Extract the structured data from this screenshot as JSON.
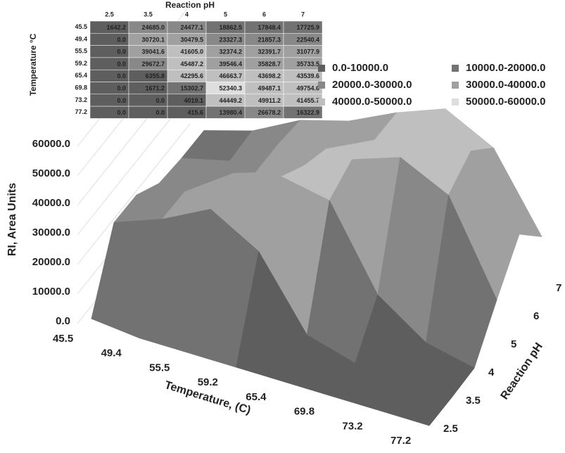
{
  "chart_data": {
    "type": "surface",
    "table_title": "Reaction pH",
    "table_row_title": "Temperature °C",
    "x_label": "Temperature, (C)",
    "y_label": "Reaction pH",
    "z_label": "RI, Area Units",
    "temperatures": [
      "45.5",
      "49.4",
      "55.5",
      "59.2",
      "65.4",
      "69.8",
      "73.2",
      "77.2"
    ],
    "ph": [
      "2.5",
      "3.5",
      "4",
      "5",
      "6",
      "7"
    ],
    "values": [
      [
        1642.2,
        24685.0,
        24477.1,
        18862.5,
        17848.4,
        17725.9
      ],
      [
        0.0,
        30720.1,
        30479.5,
        23327.3,
        21857.3,
        22540.4
      ],
      [
        0.0,
        39041.6,
        41605.0,
        32374.2,
        32391.7,
        31077.9
      ],
      [
        0.0,
        29672.7,
        45487.2,
        39546.4,
        35828.7,
        35733.5
      ],
      [
        0.0,
        6355.8,
        42295.6,
        46663.7,
        43698.2,
        43539.6
      ],
      [
        0.0,
        1671.2,
        15302.7,
        52340.3,
        49487.1,
        49754.6
      ],
      [
        0.0,
        0.0,
        4019.1,
        44449.2,
        49911.2,
        41455.7
      ],
      [
        0.0,
        0.0,
        415.6,
        13980.4,
        26678.2,
        16322.9
      ]
    ],
    "value_labels": [
      [
        "1642.2",
        "24685.0",
        "24477.1",
        "18862.5",
        "17848.4",
        "17725.9"
      ],
      [
        "0.0",
        "30720.1",
        "30479.5",
        "23327.3",
        "21857.3",
        "22540.4"
      ],
      [
        "0.0",
        "39041.6",
        "41605.0",
        "32374.2",
        "32391.7",
        "31077.9"
      ],
      [
        "0.0",
        "29672.7",
        "45487.2",
        "39546.4",
        "35828.7",
        "35733.5"
      ],
      [
        "0.0",
        "6355.8",
        "42295.6",
        "46663.7",
        "43698.2",
        "43539.6"
      ],
      [
        "0.0",
        "1671.2",
        "15302.7",
        "52340.3",
        "49487.1",
        "49754.6"
      ],
      [
        "0.0",
        "0.0",
        "4019.1",
        "44449.2",
        "49911.2",
        "41455.7"
      ],
      [
        "0.0",
        "0.0",
        "415.6",
        "13980.4",
        "26678.2",
        "16322.9"
      ]
    ],
    "zlim": [
      0,
      60000
    ],
    "zticks": [
      {
        "value": 0,
        "label": "0.0"
      },
      {
        "value": 10000,
        "label": "10000.0"
      },
      {
        "value": 20000,
        "label": "20000.0"
      },
      {
        "value": 30000,
        "label": "30000.0"
      },
      {
        "value": 40000,
        "label": "40000.0"
      },
      {
        "value": 50000,
        "label": "50000.0"
      },
      {
        "value": 60000,
        "label": "60000.0"
      }
    ],
    "legend": [
      {
        "label": "0.0-10000.0",
        "color": "#5e5e5e",
        "range": [
          0,
          10000
        ]
      },
      {
        "label": "10000.0-20000.0",
        "color": "#727272",
        "range": [
          10000,
          20000
        ]
      },
      {
        "label": "20000.0-30000.0",
        "color": "#888888",
        "range": [
          20000,
          30000
        ]
      },
      {
        "label": "30000.0-40000.0",
        "color": "#a0a0a0",
        "range": [
          30000,
          40000
        ]
      },
      {
        "label": "40000.0-50000.0",
        "color": "#bfbfbf",
        "range": [
          40000,
          50000
        ]
      },
      {
        "label": "50000.0-60000.0",
        "color": "#dedede",
        "range": [
          50000,
          60000
        ]
      }
    ]
  }
}
